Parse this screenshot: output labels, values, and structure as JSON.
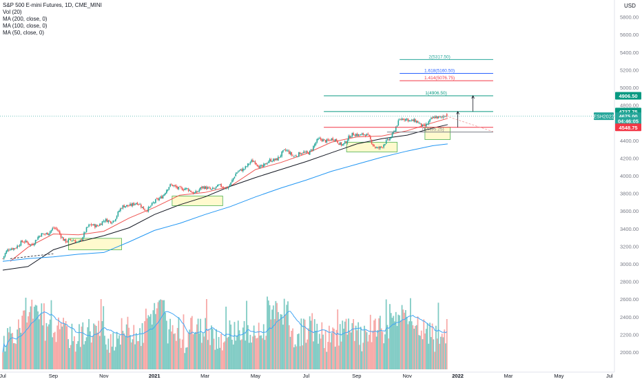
{
  "chart_data": {
    "type": "candlestick",
    "title": "S&P 500 E-mini Futures, 1D, CME_MINI",
    "indicators": [
      "Vol (20)",
      "MA (200, close, 0)",
      "MA (100, close, 0)",
      "MA (50, close, 0)"
    ],
    "currency": "USD",
    "price_axis": {
      "ticks": [
        2000,
        2200,
        2400,
        2600,
        2800,
        3000,
        3200,
        3400,
        3600,
        3800,
        4000,
        4200,
        4400,
        4600,
        4800,
        5000,
        5200,
        5400,
        5600,
        5800
      ],
      "tick_labels": [
        "2000.00",
        "2200.00",
        "2400.00",
        "2600.00",
        "2800.00",
        "3000.00",
        "3200.00",
        "3400.00",
        "3600.00",
        "3800.00",
        "4000.00",
        "4200.00",
        "4400.00",
        "4600.00",
        "4800.00",
        "5000.00",
        "5200.00",
        "5400.00",
        "5600.00",
        "5800.00"
      ],
      "ylim": [
        1900,
        5900
      ]
    },
    "time_axis": {
      "labels": [
        {
          "text": "Jul",
          "month_index": 0
        },
        {
          "text": "Sep",
          "month_index": 2
        },
        {
          "text": "Nov",
          "month_index": 4
        },
        {
          "text": "2021",
          "month_index": 6
        },
        {
          "text": "Mar",
          "month_index": 8
        },
        {
          "text": "May",
          "month_index": 10
        },
        {
          "text": "Jul",
          "month_index": 12
        },
        {
          "text": "Sep",
          "month_index": 14
        },
        {
          "text": "Nov",
          "month_index": 16
        },
        {
          "text": "2022",
          "month_index": 18
        },
        {
          "text": "Mar",
          "month_index": 20
        },
        {
          "text": "May",
          "month_index": 22
        },
        {
          "text": "Jul",
          "month_index": 24
        }
      ]
    },
    "price_path_monthly": [
      {
        "m": 0,
        "close": 3060
      },
      {
        "m": 1,
        "close": 3280
      },
      {
        "m": 2,
        "close": 3350
      },
      {
        "m": 3,
        "close": 3270
      },
      {
        "m": 4,
        "close": 3500
      },
      {
        "m": 5,
        "close": 3640
      },
      {
        "m": 6,
        "close": 3700
      },
      {
        "m": 7,
        "close": 3900
      },
      {
        "m": 8,
        "close": 3800
      },
      {
        "m": 9,
        "close": 3950
      },
      {
        "m": 10,
        "close": 4150
      },
      {
        "m": 11,
        "close": 4200
      },
      {
        "m": 12,
        "close": 4300
      },
      {
        "m": 13,
        "close": 4400
      },
      {
        "m": 14,
        "close": 4450
      },
      {
        "m": 15,
        "close": 4350
      },
      {
        "m": 16,
        "close": 4650
      },
      {
        "m": 17,
        "close": 4600
      },
      {
        "m": 17.6,
        "close": 4675
      }
    ],
    "moving_averages": [
      {
        "name": "MA (50, close, 0)",
        "color": "#ef5350",
        "points": [
          {
            "m": 0.3,
            "v": 3030
          },
          {
            "m": 1,
            "v": 3190
          },
          {
            "m": 2,
            "v": 3340
          },
          {
            "m": 3,
            "v": 3330
          },
          {
            "m": 4,
            "v": 3370
          },
          {
            "m": 5,
            "v": 3520
          },
          {
            "m": 6,
            "v": 3640
          },
          {
            "m": 7,
            "v": 3780
          },
          {
            "m": 8,
            "v": 3810
          },
          {
            "m": 9,
            "v": 3880
          },
          {
            "m": 10,
            "v": 4070
          },
          {
            "m": 11,
            "v": 4150
          },
          {
            "m": 12,
            "v": 4250
          },
          {
            "m": 13,
            "v": 4380
          },
          {
            "m": 14,
            "v": 4440
          },
          {
            "m": 15,
            "v": 4450
          },
          {
            "m": 16,
            "v": 4510
          },
          {
            "m": 17,
            "v": 4600
          },
          {
            "m": 17.6,
            "v": 4650
          }
        ]
      },
      {
        "name": "MA (100, close, 0)",
        "color": "#131722",
        "points": [
          {
            "m": 0,
            "v": 2930
          },
          {
            "m": 1,
            "v": 2970
          },
          {
            "m": 2,
            "v": 3160
          },
          {
            "m": 3,
            "v": 3250
          },
          {
            "m": 4,
            "v": 3320
          },
          {
            "m": 5,
            "v": 3410
          },
          {
            "m": 6,
            "v": 3560
          },
          {
            "m": 7,
            "v": 3670
          },
          {
            "m": 8,
            "v": 3760
          },
          {
            "m": 9,
            "v": 3880
          },
          {
            "m": 10,
            "v": 3980
          },
          {
            "m": 11,
            "v": 4070
          },
          {
            "m": 12,
            "v": 4160
          },
          {
            "m": 13,
            "v": 4260
          },
          {
            "m": 14,
            "v": 4360
          },
          {
            "m": 15,
            "v": 4420
          },
          {
            "m": 16,
            "v": 4460
          },
          {
            "m": 17,
            "v": 4540
          },
          {
            "m": 17.6,
            "v": 4580
          }
        ]
      },
      {
        "name": "MA (200, close, 0)",
        "color": "#2196f3",
        "points": [
          {
            "m": 0,
            "v": 3030
          },
          {
            "m": 1,
            "v": 3060
          },
          {
            "m": 2,
            "v": 3080
          },
          {
            "m": 3,
            "v": 3110
          },
          {
            "m": 4,
            "v": 3130
          },
          {
            "m": 5,
            "v": 3250
          },
          {
            "m": 6,
            "v": 3380
          },
          {
            "m": 7,
            "v": 3460
          },
          {
            "m": 8,
            "v": 3560
          },
          {
            "m": 9,
            "v": 3650
          },
          {
            "m": 10,
            "v": 3760
          },
          {
            "m": 11,
            "v": 3860
          },
          {
            "m": 12,
            "v": 3950
          },
          {
            "m": 13,
            "v": 4050
          },
          {
            "m": 14,
            "v": 4130
          },
          {
            "m": 15,
            "v": 4210
          },
          {
            "m": 16,
            "v": 4280
          },
          {
            "m": 17,
            "v": 4340
          },
          {
            "m": 17.6,
            "v": 4360
          }
        ]
      }
    ],
    "horizontal_levels": [
      {
        "price": 5317.5,
        "label": "2(5317.50)",
        "color": "#26a69a",
        "m_start": 15.7,
        "m_end": 19.4
      },
      {
        "price": 5160.5,
        "label": "1.618(5160.50)",
        "color": "#2962ff",
        "m_start": 15.7,
        "m_end": 19.4
      },
      {
        "price": 5076.75,
        "label": "1.414(5076.75)",
        "color": "#f23645",
        "m_start": 15.7,
        "m_end": 19.4
      },
      {
        "price": 4906.5,
        "label": "1(4906.50)",
        "color": "#089981",
        "m_start": 12.7,
        "m_end": 19.4
      },
      {
        "price": 4727.75,
        "label": "",
        "color": "#089981",
        "m_start": 12.7,
        "m_end": 19.4
      },
      {
        "price": 4548.75,
        "label": "",
        "color": "#f23645",
        "m_start": 12.7,
        "m_end": 19.4
      },
      {
        "price": 4495.25,
        "label": "0(4495.25)",
        "color": "#787b86",
        "m_start": 15.2,
        "m_end": 19.4
      }
    ],
    "support_boxes": [
      {
        "m0": 2.6,
        "m1": 4.7,
        "p0": 3160,
        "p1": 3290
      },
      {
        "m0": 6.7,
        "m1": 8.7,
        "p0": 3660,
        "p1": 3770
      },
      {
        "m0": 13.6,
        "m1": 15.6,
        "p0": 4270,
        "p1": 4380
      },
      {
        "m0": 16.7,
        "m1": 17.7,
        "p0": 4410,
        "p1": 4550
      }
    ],
    "price_badges": [
      {
        "text": "4906.50",
        "price": 4906.5,
        "bg": "#089981",
        "fg": "#ffffff"
      },
      {
        "text": "4727.75",
        "price": 4727.75,
        "bg": "#089981",
        "fg": "#ffffff"
      },
      {
        "text": "4675.00",
        "price": 4675,
        "bg": "#26a69a",
        "fg": "#ffffff"
      },
      {
        "text": "04:46:05",
        "price": 4620,
        "bg": "#26a69a",
        "fg": "#ffffff"
      },
      {
        "text": "4548.75",
        "price": 4548.75,
        "bg": "#f23645",
        "fg": "#ffffff"
      }
    ],
    "symbol_badge": {
      "text": "ESH2022",
      "price": 4675
    },
    "volume": {
      "color_up": "#80cbc4",
      "color_down": "#f7a9a7",
      "ma_color": "#42a5f5"
    }
  }
}
